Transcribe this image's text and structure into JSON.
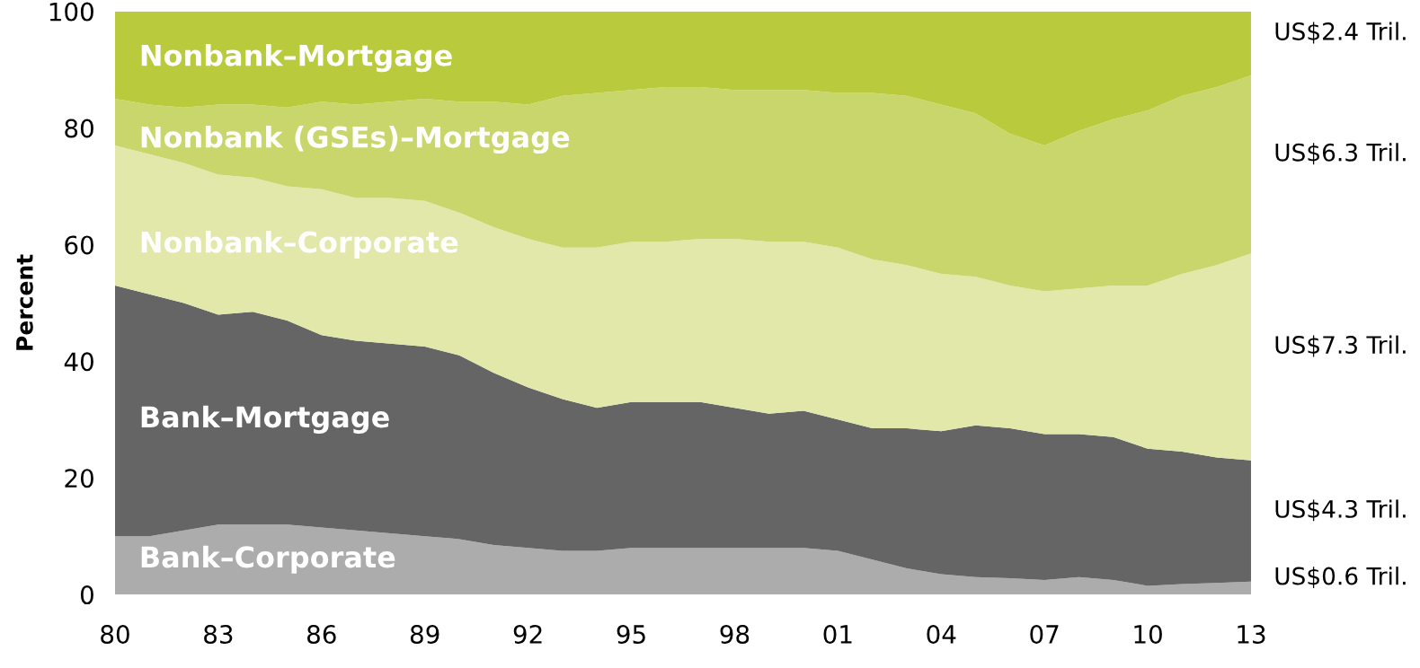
{
  "chart_data": {
    "type": "area",
    "stacked": true,
    "ylabel": "Percent",
    "x": [
      1980,
      1981,
      1982,
      1983,
      1984,
      1985,
      1986,
      1987,
      1988,
      1989,
      1990,
      1991,
      1992,
      1993,
      1994,
      1995,
      1996,
      1997,
      1998,
      1999,
      2000,
      2001,
      2002,
      2003,
      2004,
      2005,
      2006,
      2007,
      2008,
      2009,
      2010,
      2011,
      2012,
      2013
    ],
    "series": [
      {
        "name": "Bank–Corporate",
        "color": "#acacac",
        "values": [
          10,
          10,
          11,
          12,
          12,
          12,
          11.5,
          11,
          10.5,
          10,
          9.5,
          8.5,
          8,
          7.5,
          7.5,
          8,
          8,
          8,
          8,
          8,
          8,
          7.5,
          6,
          4.5,
          3.5,
          3,
          2.8,
          2.5,
          3,
          2.5,
          1.5,
          1.8,
          2,
          2.2
        ]
      },
      {
        "name": "Bank–Mortgage",
        "color": "#656565",
        "values": [
          43,
          41.5,
          39,
          36,
          36.5,
          35,
          33,
          32.5,
          32.5,
          32.5,
          31.5,
          29.5,
          27.5,
          26,
          24.5,
          25,
          25,
          25,
          24,
          23,
          23.5,
          22.5,
          22.5,
          24,
          24.5,
          26,
          25.7,
          25,
          24.5,
          24.5,
          23.5,
          22.7,
          21.5,
          20.8
        ]
      },
      {
        "name": "Nonbank–Corporate",
        "color": "#e1e8a9",
        "values": [
          24,
          24,
          24,
          24,
          23,
          23,
          25,
          24.5,
          25,
          25,
          24.5,
          25,
          25.5,
          26,
          27.5,
          27.5,
          27.5,
          28,
          29,
          29.5,
          29,
          29.5,
          29,
          28,
          27,
          25.5,
          24.5,
          24.5,
          25,
          26,
          28,
          30.5,
          33,
          35.5
        ]
      },
      {
        "name": "Nonbank (GSEs)–Mortgage",
        "color": "#c9d66c",
        "values": [
          8,
          8.5,
          9.5,
          12,
          12.5,
          13.5,
          15,
          16,
          16.5,
          17.5,
          19,
          21.5,
          23,
          26,
          26.5,
          26,
          26.5,
          26,
          25.5,
          26,
          26,
          26.5,
          28.5,
          29,
          29,
          28,
          26,
          25,
          27,
          28.5,
          30,
          30.5,
          30.5,
          30.5
        ]
      },
      {
        "name": "Nonbank–Mortgage",
        "color": "#b9cb3c",
        "values": [
          15,
          16,
          16.5,
          16,
          16,
          16.5,
          15.5,
          16,
          15.5,
          15,
          15.5,
          15.5,
          16,
          14.5,
          14,
          13.5,
          13,
          13,
          13.5,
          13.5,
          13.5,
          14,
          14,
          14.5,
          16,
          17.5,
          21,
          23,
          20.5,
          18.5,
          17,
          14.5,
          13,
          11
        ]
      }
    ],
    "xlim": [
      1980,
      2013
    ],
    "xticks": [
      {
        "value": 1980,
        "label": "80"
      },
      {
        "value": 1983,
        "label": "83"
      },
      {
        "value": 1986,
        "label": "86"
      },
      {
        "value": 1989,
        "label": "89"
      },
      {
        "value": 1992,
        "label": "92"
      },
      {
        "value": 1995,
        "label": "95"
      },
      {
        "value": 1998,
        "label": "98"
      },
      {
        "value": 2001,
        "label": "01"
      },
      {
        "value": 2004,
        "label": "04"
      },
      {
        "value": 2007,
        "label": "07"
      },
      {
        "value": 2010,
        "label": "10"
      },
      {
        "value": 2013,
        "label": "13"
      }
    ],
    "ylim": [
      0,
      100
    ],
    "yticks": [
      0,
      20,
      40,
      60,
      80,
      100
    ],
    "annotations": [
      "US$0.6 Tril.",
      "US$4.3 Tril.",
      "US$7.3 Tril.",
      "US$6.3 Tril.",
      "US$2.4 Tril."
    ],
    "grid": false,
    "legend": false
  }
}
